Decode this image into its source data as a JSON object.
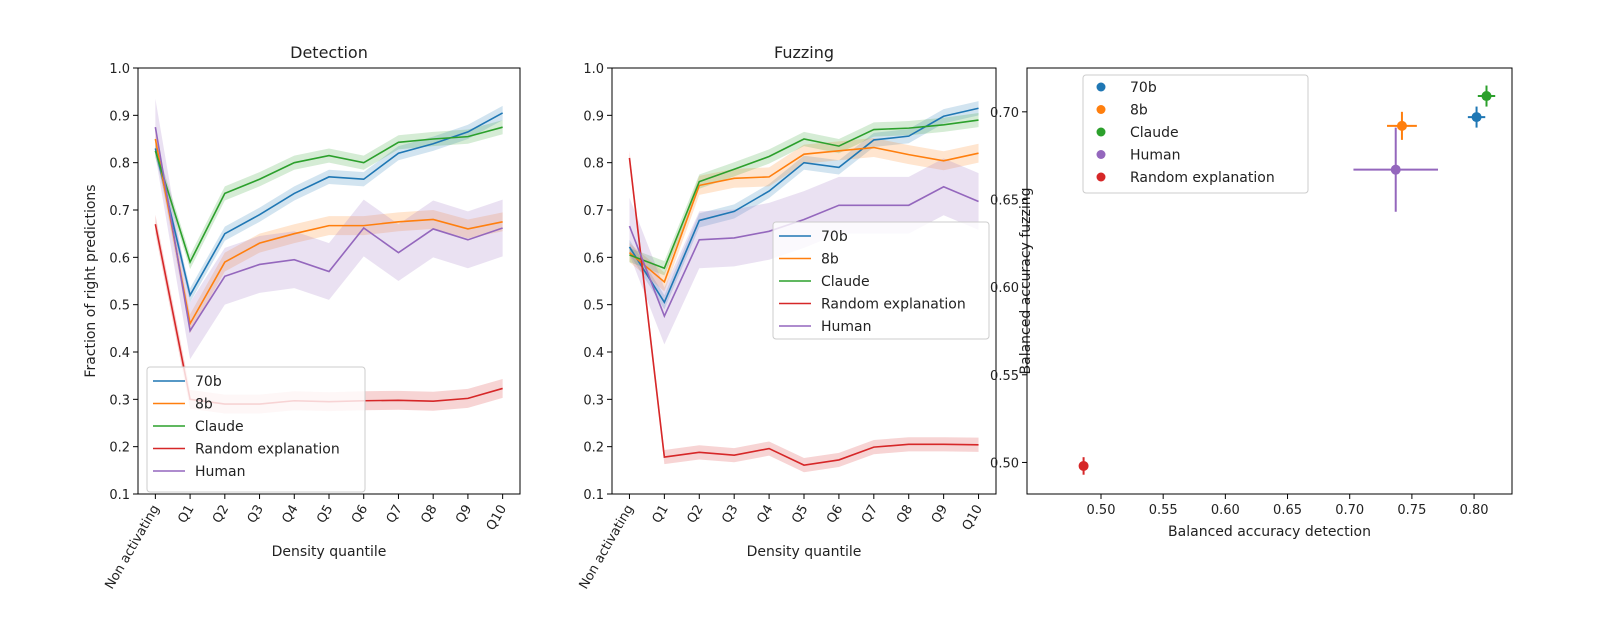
{
  "colors": {
    "70b": "#1f77b4",
    "8b": "#ff7f0e",
    "Claude": "#2ca02c",
    "Random explanation": "#d62728",
    "Human": "#9467bd"
  },
  "chart_data": [
    {
      "type": "line",
      "title": "Detection",
      "xlabel": "Density quantile",
      "ylabel": "Fraction of right predictions",
      "categories": [
        "Non activating",
        "Q1",
        "Q2",
        "Q3",
        "Q4",
        "Q5",
        "Q6",
        "Q7",
        "Q8",
        "Q9",
        "Q10"
      ],
      "ylim": [
        0.1,
        1.0
      ],
      "yticks": [
        "0.1",
        "0.2",
        "0.3",
        "0.4",
        "0.5",
        "0.6",
        "0.7",
        "0.8",
        "0.9",
        "1.0"
      ],
      "legend_position": "lower-left",
      "series": [
        {
          "name": "70b",
          "values": [
            0.83,
            0.52,
            0.65,
            0.69,
            0.735,
            0.77,
            0.765,
            0.82,
            0.84,
            0.865,
            0.905
          ],
          "ci": 0.015
        },
        {
          "name": "8b",
          "values": [
            0.85,
            0.46,
            0.59,
            0.63,
            0.65,
            0.667,
            0.667,
            0.675,
            0.68,
            0.66,
            0.675
          ],
          "ci": 0.02
        },
        {
          "name": "Claude",
          "values": [
            0.825,
            0.59,
            0.735,
            0.765,
            0.8,
            0.815,
            0.8,
            0.843,
            0.85,
            0.855,
            0.875
          ],
          "ci": 0.015
        },
        {
          "name": "Random explanation",
          "values": [
            0.67,
            0.3,
            0.29,
            0.29,
            0.297,
            0.295,
            0.297,
            0.298,
            0.296,
            0.302,
            0.323
          ],
          "ci": 0.02
        },
        {
          "name": "Human",
          "values": [
            0.875,
            0.445,
            0.56,
            0.585,
            0.595,
            0.57,
            0.662,
            0.61,
            0.66,
            0.637,
            0.662
          ],
          "ci": 0.06
        }
      ]
    },
    {
      "type": "line",
      "title": "Fuzzing",
      "xlabel": "Density quantile",
      "ylabel": "",
      "categories": [
        "Non activating",
        "Q1",
        "Q2",
        "Q3",
        "Q4",
        "Q5",
        "Q6",
        "Q7",
        "Q8",
        "Q9",
        "Q10"
      ],
      "ylim": [
        0.1,
        1.0
      ],
      "yticks": [
        "0.1",
        "0.2",
        "0.3",
        "0.4",
        "0.5",
        "0.6",
        "0.7",
        "0.8",
        "0.9",
        "1.0"
      ],
      "legend_position": "center-right",
      "series": [
        {
          "name": "70b",
          "values": [
            0.622,
            0.505,
            0.678,
            0.697,
            0.74,
            0.8,
            0.79,
            0.848,
            0.856,
            0.898,
            0.915
          ],
          "ci": 0.015
        },
        {
          "name": "8b",
          "values": [
            0.61,
            0.548,
            0.752,
            0.767,
            0.77,
            0.818,
            0.825,
            0.832,
            0.817,
            0.804,
            0.82
          ],
          "ci": 0.02
        },
        {
          "name": "Claude",
          "values": [
            0.605,
            0.577,
            0.76,
            0.786,
            0.813,
            0.85,
            0.835,
            0.87,
            0.873,
            0.88,
            0.89
          ],
          "ci": 0.015
        },
        {
          "name": "Random explanation",
          "values": [
            0.81,
            0.178,
            0.188,
            0.182,
            0.196,
            0.161,
            0.172,
            0.199,
            0.205,
            0.205,
            0.204
          ],
          "ci": 0.015
        },
        {
          "name": "Human",
          "values": [
            0.666,
            0.476,
            0.637,
            0.641,
            0.655,
            0.68,
            0.71,
            0.71,
            0.71,
            0.749,
            0.718
          ],
          "ci": 0.06
        }
      ]
    },
    {
      "type": "scatter",
      "title": "",
      "xlabel": "Balanced accuracy detection",
      "ylabel": "Balanced accuracy fuzzing",
      "xlim": [
        0.4405,
        0.8305
      ],
      "ylim": [
        0.482,
        0.725
      ],
      "xticks": [
        "0.50",
        "0.55",
        "0.60",
        "0.65",
        "0.70",
        "0.75",
        "0.80"
      ],
      "yticks": [
        "0.50",
        "0.55",
        "0.60",
        "0.65",
        "0.70"
      ],
      "legend_position": "top-left",
      "points": [
        {
          "name": "70b",
          "x": 0.802,
          "y": 0.697,
          "xerr": 0.007,
          "yerr": 0.006
        },
        {
          "name": "8b",
          "x": 0.742,
          "y": 0.692,
          "xerr": 0.012,
          "yerr": 0.008
        },
        {
          "name": "Claude",
          "x": 0.81,
          "y": 0.709,
          "xerr": 0.007,
          "yerr": 0.006
        },
        {
          "name": "Human",
          "x": 0.737,
          "y": 0.667,
          "xerr": 0.034,
          "yerr": 0.024
        },
        {
          "name": "Random explanation",
          "x": 0.486,
          "y": 0.498,
          "xerr": 0.003,
          "yerr": 0.005
        }
      ],
      "legend_order": [
        "70b",
        "8b",
        "Claude",
        "Human",
        "Random explanation"
      ]
    }
  ]
}
